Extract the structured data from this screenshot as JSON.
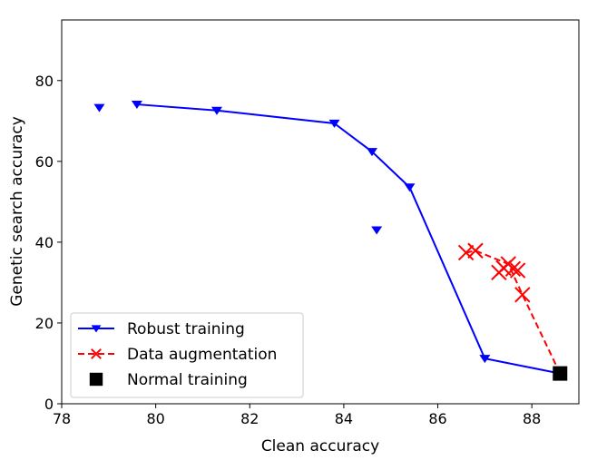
{
  "chart_data": {
    "type": "line",
    "xlabel": "Clean accuracy",
    "ylabel": "Genetic search accuracy",
    "xlim": [
      78,
      89
    ],
    "ylim": [
      0,
      95
    ],
    "xticks": [
      78,
      80,
      82,
      84,
      86,
      88
    ],
    "yticks": [
      0,
      20,
      40,
      60,
      80
    ],
    "grid": false,
    "legend_position": "lower-left",
    "series": [
      {
        "name": "Robust training",
        "color": "#0000ff",
        "marker": "triangle-down",
        "linestyle": "solid",
        "line": [
          [
            79.6,
            74.1
          ],
          [
            81.3,
            72.6
          ],
          [
            83.8,
            69.4
          ],
          [
            84.6,
            62.4
          ],
          [
            85.4,
            53.6
          ],
          [
            87.0,
            11.2
          ],
          [
            88.6,
            7.5
          ]
        ],
        "markers": [
          [
            78.8,
            73.3
          ],
          [
            79.6,
            74.1
          ],
          [
            81.3,
            72.6
          ],
          [
            83.8,
            69.4
          ],
          [
            84.6,
            62.4
          ],
          [
            85.4,
            53.6
          ],
          [
            84.7,
            43.0
          ],
          [
            87.0,
            11.2
          ]
        ]
      },
      {
        "name": "Data augmentation",
        "color": "#ff0000",
        "marker": "x",
        "linestyle": "dashed",
        "line": [
          [
            86.6,
            37.4
          ],
          [
            86.8,
            37.9
          ],
          [
            87.5,
            34.6
          ],
          [
            87.8,
            27.0
          ],
          [
            88.6,
            7.5
          ]
        ],
        "markers": [
          [
            86.6,
            37.4
          ],
          [
            86.8,
            37.9
          ],
          [
            87.3,
            32.5
          ],
          [
            87.4,
            33.6
          ],
          [
            87.5,
            34.6
          ],
          [
            87.6,
            33.4
          ],
          [
            87.7,
            33.0
          ],
          [
            87.8,
            27.0
          ]
        ]
      },
      {
        "name": "Normal training",
        "color": "#000000",
        "marker": "square",
        "linestyle": "none",
        "markers": [
          [
            88.6,
            7.5
          ]
        ]
      }
    ]
  }
}
